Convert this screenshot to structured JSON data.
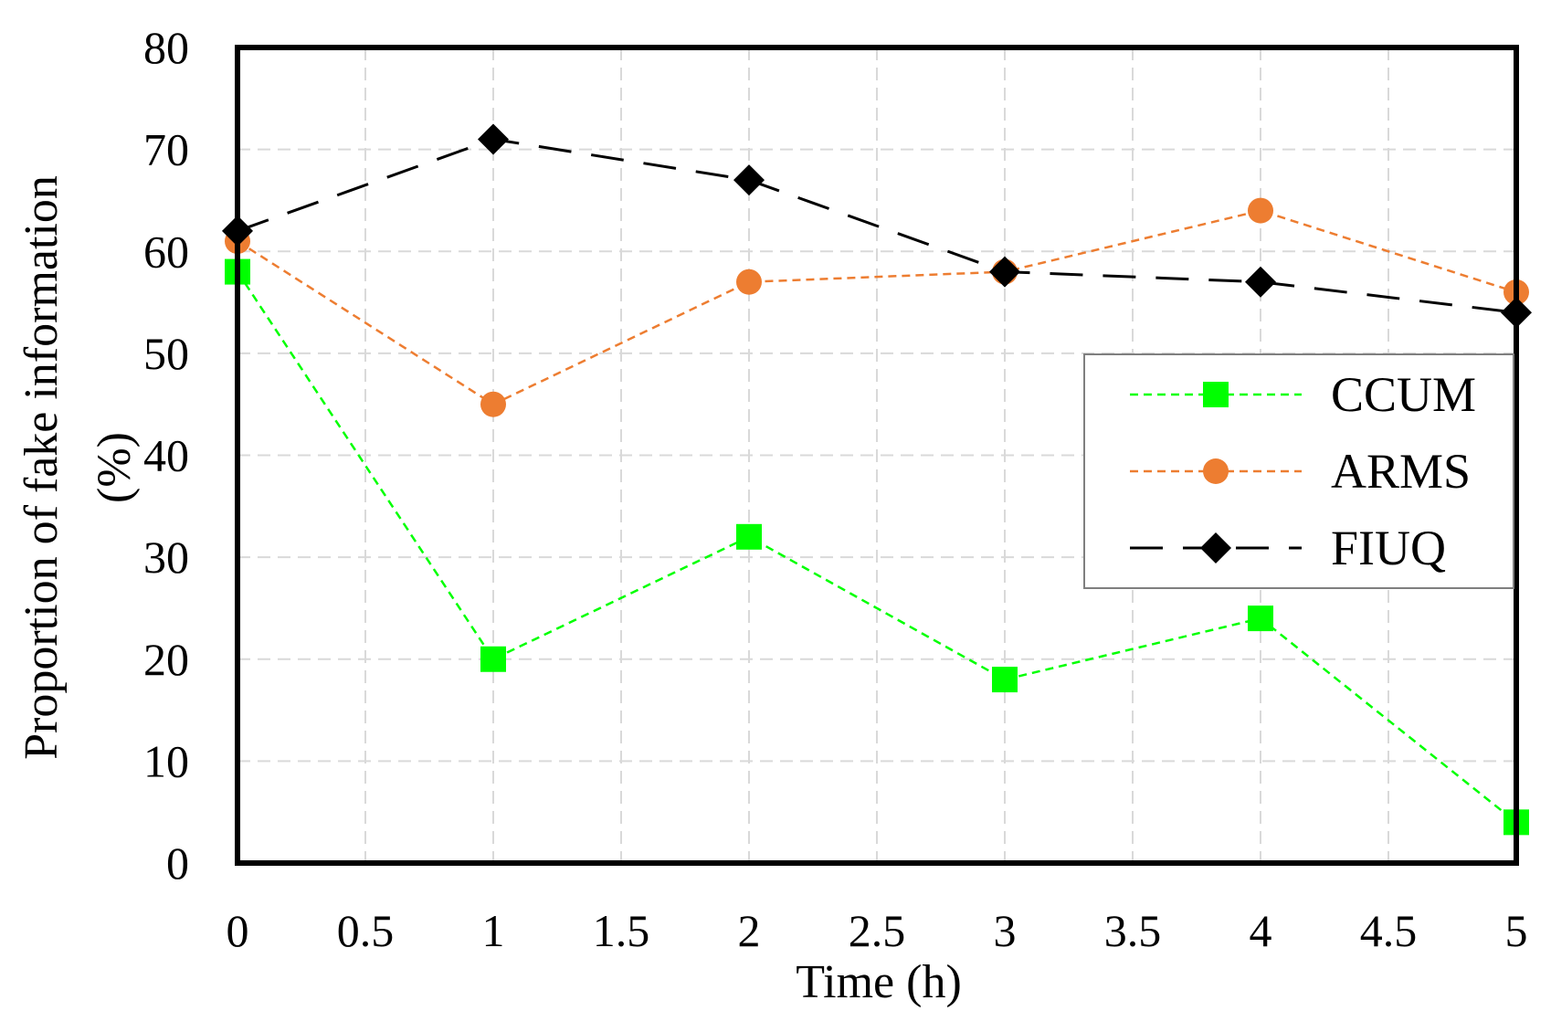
{
  "chart_data": {
    "type": "line",
    "title": "",
    "xlabel": "Time (h)",
    "ylabel_line1": "Proportion of  fake information",
    "ylabel_line2": "(%)",
    "xlim": [
      0,
      5
    ],
    "ylim": [
      0,
      80
    ],
    "xticks": [
      0,
      0.5,
      1,
      1.5,
      2,
      2.5,
      3,
      3.5,
      4,
      4.5,
      5
    ],
    "yticks": [
      0,
      10,
      20,
      30,
      40,
      50,
      60,
      70,
      80
    ],
    "grid": true,
    "legend_position": "right",
    "x": [
      0,
      1,
      2,
      3,
      4,
      5
    ],
    "series": [
      {
        "name": "CCUM",
        "values": [
          58,
          20,
          32,
          18,
          24,
          4
        ],
        "color": "#00ff00",
        "marker": "square",
        "dash": "short-dash"
      },
      {
        "name": "ARMS",
        "values": [
          61,
          45,
          57,
          58,
          64,
          56
        ],
        "color": "#ed7d31",
        "marker": "circle",
        "dash": "short-dash"
      },
      {
        "name": "FIUQ",
        "values": [
          62,
          71,
          67,
          58,
          57,
          54
        ],
        "color": "#000000",
        "marker": "diamond",
        "dash": "long-dash"
      }
    ]
  }
}
